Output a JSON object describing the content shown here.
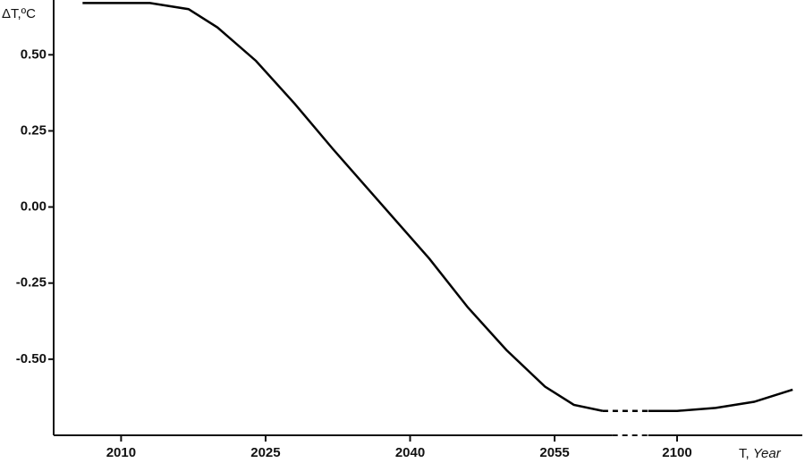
{
  "chart_data": {
    "type": "line",
    "ylabel": "ΔT,ºC",
    "xlabel": "T,",
    "xlabel_italic": "Year",
    "x": [
      2006,
      2013,
      2017,
      2020,
      2024,
      2028,
      2032,
      2037,
      2042,
      2046,
      2050,
      2054,
      2057,
      2060,
      2097,
      2100,
      2104,
      2108,
      2112
    ],
    "series": [
      {
        "name": "ΔT",
        "color": "#000000",
        "values": [
          0.67,
          0.67,
          0.65,
          0.59,
          0.48,
          0.34,
          0.19,
          0.01,
          -0.17,
          -0.33,
          -0.47,
          -0.59,
          -0.65,
          -0.67,
          -0.67,
          -0.67,
          -0.66,
          -0.64,
          -0.6
        ]
      }
    ],
    "xlim": [
      2003,
      2113
    ],
    "axis_break": [
      2061,
      2097
    ],
    "xticks": [
      2010,
      2025,
      2040,
      2055,
      2100
    ],
    "ylim": [
      -0.75,
      0.68
    ],
    "yticks": [
      {
        "value": 0.5,
        "label": "0.50"
      },
      0.25,
      {
        "value": 0,
        "label": "0.00"
      },
      -0.25,
      {
        "value": -0.5,
        "label": "-0.50"
      }
    ],
    "grid": false
  }
}
